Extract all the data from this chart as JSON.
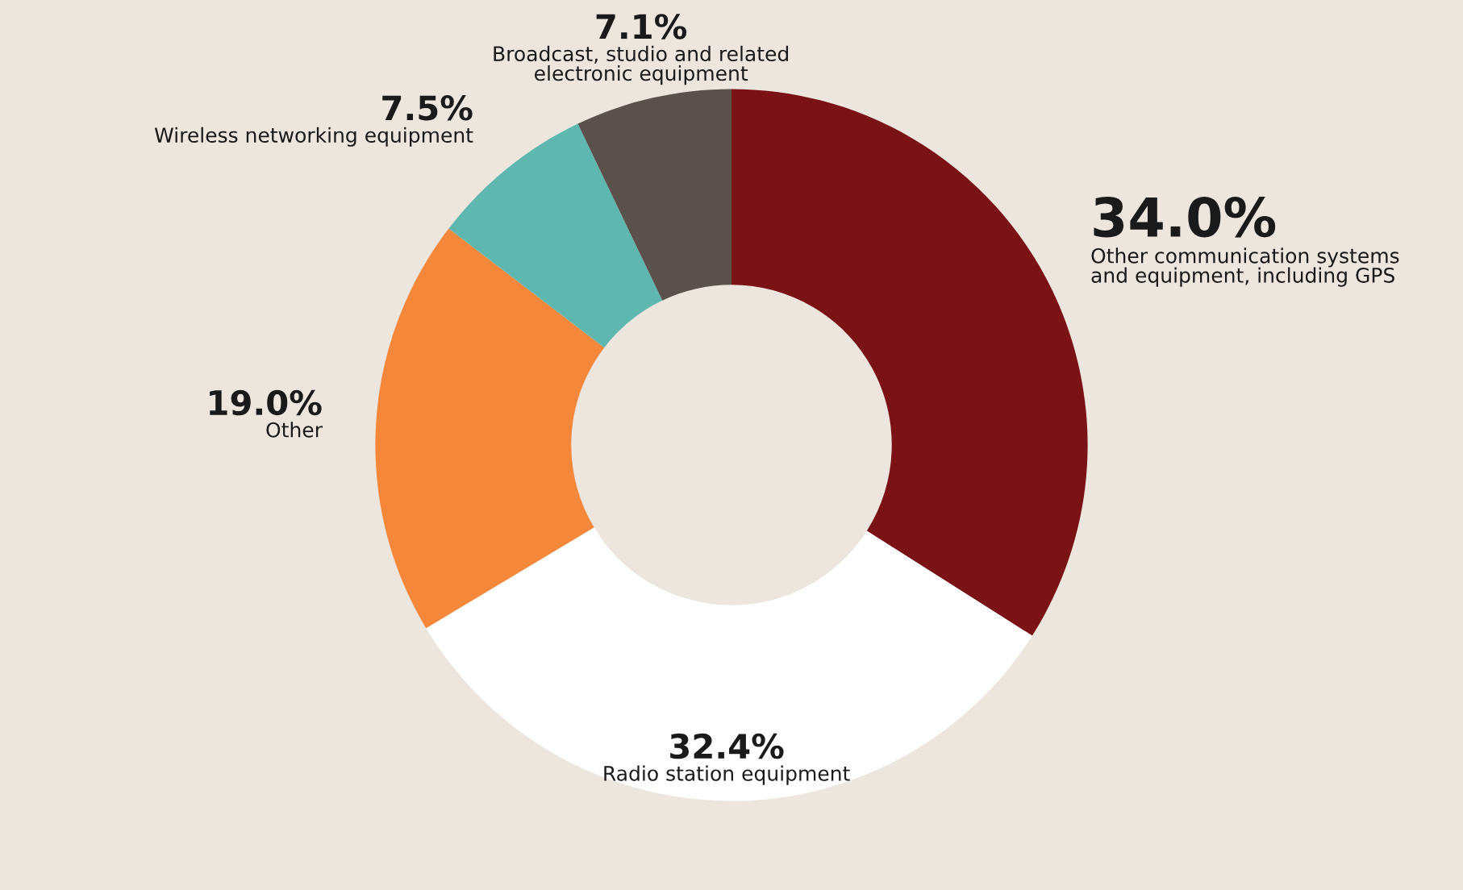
{
  "chart_data": {
    "type": "donut",
    "categories": [
      "Other communication systems\nand equipment, including GPS",
      "Radio station equipment",
      "Other",
      "Wireless networking equipment",
      "Broadcast, studio and related\nelectronic equipment"
    ],
    "values": [
      34.0,
      32.4,
      19.0,
      7.5,
      7.1
    ],
    "value_labels": [
      "34.0%",
      "32.4%",
      "19.0%",
      "7.5%",
      "7.1%"
    ],
    "colors": [
      "#7a1216",
      "#ffffff",
      "#f5873a",
      "#5fb8b0",
      "#5a504c"
    ],
    "legend": false
  }
}
